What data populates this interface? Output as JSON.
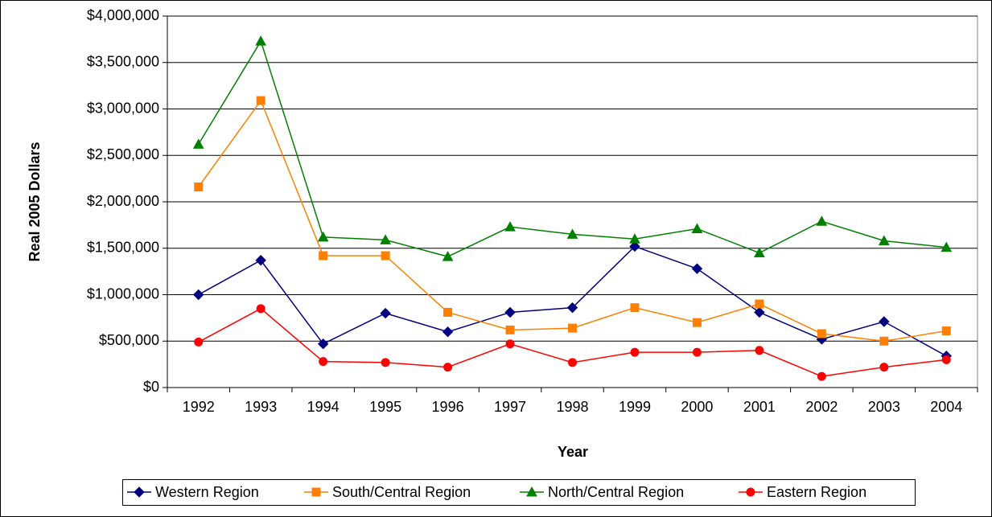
{
  "chart_data": {
    "type": "line",
    "x_label": "Year",
    "y_label": "Real 2005 Dollars",
    "categories": [
      "1992",
      "1993",
      "1994",
      "1995",
      "1996",
      "1997",
      "1998",
      "1999",
      "2000",
      "2001",
      "2002",
      "2003",
      "2004"
    ],
    "series": [
      {
        "name": "Western Region",
        "color": "#000080",
        "marker": "diamond",
        "values": [
          1000000,
          1370000,
          470000,
          800000,
          600000,
          810000,
          860000,
          1520000,
          1280000,
          810000,
          520000,
          710000,
          340000
        ]
      },
      {
        "name": "South/Central Region",
        "color": "#ff8000",
        "marker": "square",
        "values": [
          2160000,
          3090000,
          1420000,
          1420000,
          810000,
          620000,
          640000,
          860000,
          700000,
          900000,
          580000,
          500000,
          610000
        ]
      },
      {
        "name": "North/Central Region",
        "color": "#008000",
        "marker": "triangle",
        "values": [
          2620000,
          3730000,
          1620000,
          1590000,
          1410000,
          1730000,
          1650000,
          1600000,
          1710000,
          1450000,
          1790000,
          1580000,
          1510000
        ]
      },
      {
        "name": "Eastern Region",
        "color": "#ff0000",
        "marker": "circle",
        "values": [
          490000,
          850000,
          280000,
          270000,
          220000,
          470000,
          270000,
          380000,
          380000,
          400000,
          120000,
          220000,
          300000
        ]
      }
    ],
    "ylim": [
      0,
      4000000
    ],
    "yticks": [
      {
        "value": 0,
        "label": "$0"
      },
      {
        "value": 500000,
        "label": "$500,000"
      },
      {
        "value": 1000000,
        "label": "$1,000,000"
      },
      {
        "value": 1500000,
        "label": "$1,500,000"
      },
      {
        "value": 2000000,
        "label": "$2,000,000"
      },
      {
        "value": 2500000,
        "label": "$2,500,000"
      },
      {
        "value": 3000000,
        "label": "$3,000,000"
      },
      {
        "value": 3500000,
        "label": "$3,500,000"
      },
      {
        "value": 4000000,
        "label": "$4,000,000"
      }
    ],
    "grid": true,
    "legend": "bottom"
  }
}
